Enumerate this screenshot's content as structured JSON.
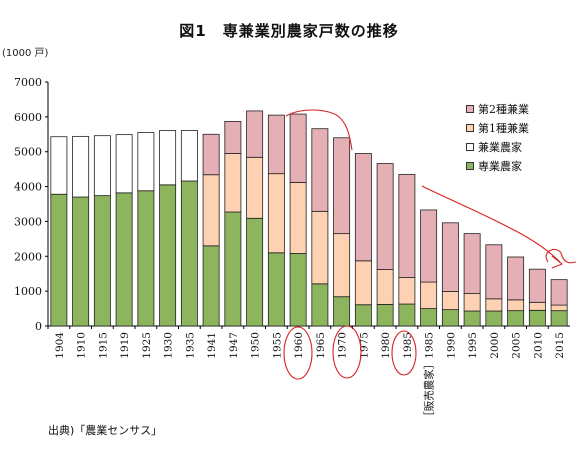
{
  "chart_data": {
    "type": "bar",
    "stacked": true,
    "title": "図1　専兼業別農家戸数の推移",
    "unit_label": "(1000 戸)",
    "ylim": [
      0,
      7000
    ],
    "yticks": [
      0,
      1000,
      2000,
      3000,
      4000,
      5000,
      6000,
      7000
    ],
    "categories": [
      "1904",
      "1910",
      "1915",
      "1919",
      "1925",
      "1930",
      "1935",
      "1941",
      "1947",
      "1950",
      "1955",
      "1960",
      "1965",
      "1970",
      "1975",
      "1980",
      "1985",
      "［販売農家］1985",
      "1990",
      "1995",
      "2000",
      "2005",
      "2010",
      "2015"
    ],
    "colors": {
      "sengyo": "#8db55e",
      "dai1": "#fdd1b1",
      "dai2": "#e5afb6",
      "kengyo": "#ffffff"
    },
    "series": [
      {
        "name": "専業農家",
        "key": "sengyo",
        "values": [
          3780,
          3700,
          3740,
          3820,
          3880,
          4050,
          4160,
          2300,
          3270,
          3090,
          2100,
          2080,
          1210,
          840,
          610,
          620,
          630,
          500,
          470,
          430,
          430,
          440,
          450,
          440
        ]
      },
      {
        "name": "兼業農家",
        "key": "kengyo",
        "values": [
          1650,
          1740,
          1720,
          1670,
          1670,
          1560,
          1450,
          0,
          0,
          0,
          0,
          0,
          0,
          0,
          0,
          0,
          0,
          0,
          0,
          0,
          0,
          0,
          0,
          0
        ]
      },
      {
        "name": "第1種兼業",
        "key": "dai1",
        "values": [
          0,
          0,
          0,
          0,
          0,
          0,
          0,
          2040,
          1680,
          1750,
          2270,
          2040,
          2080,
          1810,
          1260,
          1000,
          760,
          760,
          520,
          500,
          350,
          310,
          230,
          160
        ]
      },
      {
        "name": "第2種兼業",
        "key": "dai2",
        "values": [
          0,
          0,
          0,
          0,
          0,
          0,
          0,
          1160,
          920,
          1330,
          1680,
          1960,
          2370,
          2750,
          3080,
          3040,
          2960,
          2070,
          1970,
          1720,
          1550,
          1230,
          950,
          730
        ]
      }
    ],
    "legend": {
      "placement": "top-right",
      "items": [
        {
          "name": "第2種兼業",
          "key": "dai2"
        },
        {
          "name": "第1種兼業",
          "key": "dai1"
        },
        {
          "name": "兼業農家",
          "key": "kengyo"
        },
        {
          "name": "専業農家",
          "key": "sengyo"
        }
      ]
    },
    "grid": false
  },
  "source": "出典)「農業センサス」"
}
